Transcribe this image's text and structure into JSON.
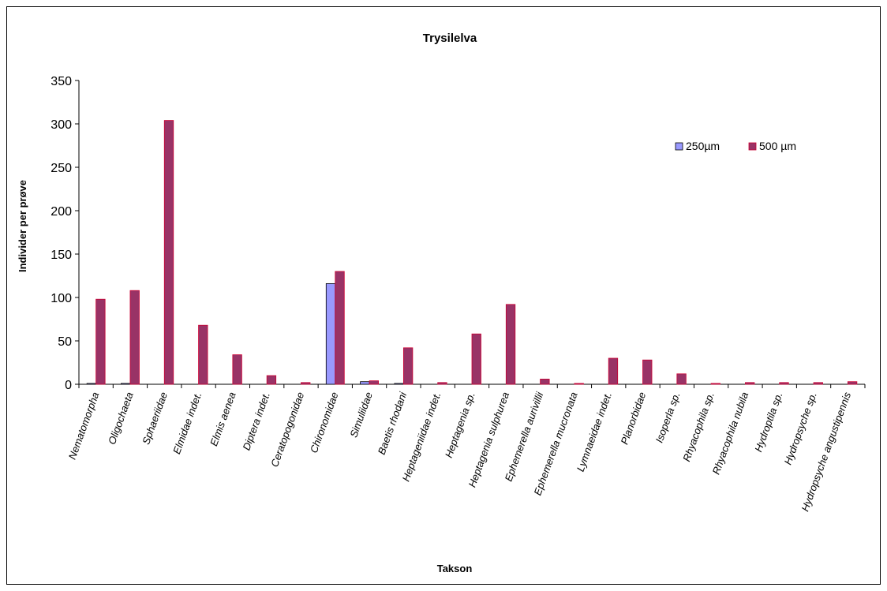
{
  "chart_data": {
    "type": "bar",
    "title": "Trysilelva",
    "xlabel": "Takson",
    "ylabel": "Individer per prøve",
    "ylim": [
      0,
      350
    ],
    "yticks": [
      0,
      50,
      100,
      150,
      200,
      250,
      300,
      350
    ],
    "grid": false,
    "legend_position": "right",
    "categories": [
      "Nematomorpha",
      "Oligochaeta",
      "Sphaeriidae",
      "Elmidae indet.",
      "Elmis aenea",
      "Diptera indet.",
      "Ceratopogonidae",
      "Chironomidae",
      "Simuliidae",
      "Baetis rhodani",
      "Heptageniidae indet.",
      "Heptagenia sp.",
      "Heptagenia sulphurea",
      "Ephemerella aurivillii",
      "Ephemerella mucronata",
      "Lymnaeidae indet.",
      "Planorbidae",
      "Isoperla sp.",
      "Rhyacophila sp.",
      "Rhyacophila nubila",
      "Hydroptila sp.",
      "Hydropsyche sp.",
      "Hydropsyche angustipennis"
    ],
    "series": [
      {
        "name": "250µm",
        "color": "#9999ff",
        "values": [
          1,
          1,
          0,
          0,
          0,
          0,
          0,
          116,
          3,
          1,
          0,
          0,
          0,
          0,
          0,
          0,
          0,
          0,
          0,
          0,
          0,
          0,
          0
        ]
      },
      {
        "name": "500 µm",
        "color": "#993366",
        "values": [
          98,
          108,
          304,
          68,
          34,
          10,
          2,
          130,
          4,
          42,
          2,
          58,
          92,
          6,
          1,
          30,
          28,
          12,
          1,
          2,
          2,
          2,
          3
        ]
      }
    ]
  }
}
